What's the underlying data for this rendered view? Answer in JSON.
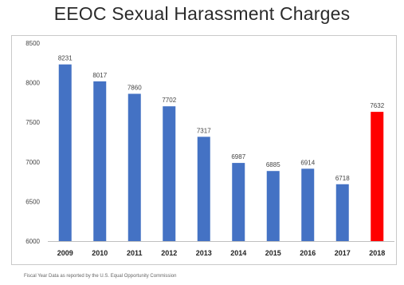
{
  "chart_data": {
    "type": "bar",
    "title": "EEOC Sexual Harassment Charges",
    "categories": [
      "2009",
      "2010",
      "2011",
      "2012",
      "2013",
      "2014",
      "2015",
      "2016",
      "2017",
      "2018"
    ],
    "values": [
      8231,
      8017,
      7860,
      7702,
      7317,
      6987,
      6885,
      6914,
      6718,
      7632
    ],
    "bar_colors": [
      "#4472c4",
      "#4472c4",
      "#4472c4",
      "#4472c4",
      "#4472c4",
      "#4472c4",
      "#4472c4",
      "#4472c4",
      "#4472c4",
      "#ff0000"
    ],
    "ylim": [
      6000,
      8500
    ],
    "yticks": [
      6000,
      6500,
      7000,
      7500,
      8000,
      8500
    ],
    "xlabel": "",
    "ylabel": "",
    "grid": false,
    "legend": "none"
  },
  "source_note": "Fiscal Year Data as reported by the U.S. Equal Opportunity Commission"
}
